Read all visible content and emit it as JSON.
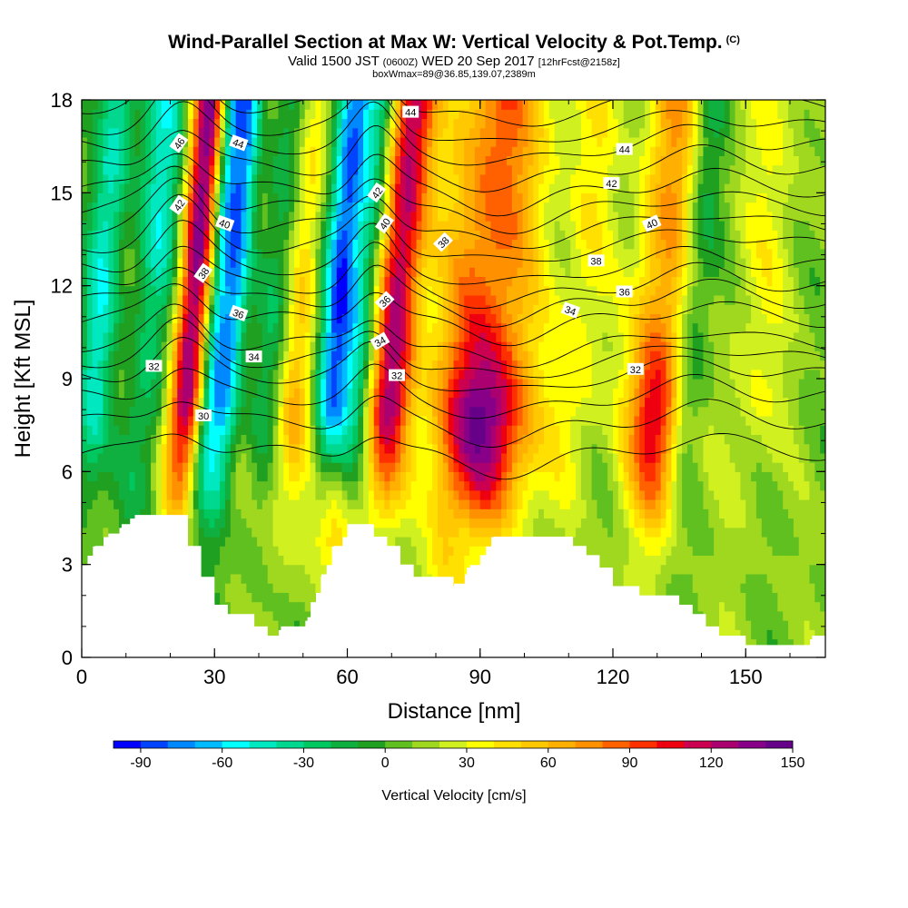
{
  "header": {
    "title": "Wind-Parallel Section at Max W: Vertical Velocity & Pot.Temp.",
    "title_tag": "(C)",
    "subtitle_a": "Valid 1500 JST",
    "subtitle_b": "(0600Z)",
    "subtitle_c": "WED 20 Sep 2017",
    "subtitle_d": "[12hrFcst@2158z]",
    "subtitle_line3": "boxWmax=89@36.85,139.07,2389m"
  },
  "chart_data": {
    "type": "heatmap",
    "title": "Wind-Parallel Section at Max W: Vertical Velocity & Pot.Temp.",
    "xlabel": "Distance [nm]",
    "ylabel": "Height [Kft MSL]",
    "xlim": [
      0,
      168
    ],
    "ylim": [
      0,
      18
    ],
    "x_ticks": [
      "0",
      "30",
      "60",
      "90",
      "120",
      "150"
    ],
    "x_tick_values": [
      0,
      30,
      60,
      90,
      120,
      150
    ],
    "y_ticks": [
      "0",
      "3",
      "6",
      "9",
      "12",
      "15",
      "18"
    ],
    "y_tick_values": [
      0,
      3,
      6,
      9,
      12,
      15,
      18
    ],
    "colorbar": {
      "label": "Vertical Velocity [cm/s]",
      "tick_labels": [
        "-90",
        "-60",
        "-30",
        "0",
        "30",
        "60",
        "90",
        "120",
        "150"
      ],
      "tick_values": [
        -90,
        -60,
        -30,
        0,
        30,
        60,
        90,
        120,
        150
      ],
      "colors": [
        "#0000ff",
        "#0044ff",
        "#0088ff",
        "#00bbff",
        "#00ffff",
        "#00e8c0",
        "#00d890",
        "#00c860",
        "#10b040",
        "#20a020",
        "#60c020",
        "#a0d820",
        "#d0f020",
        "#ffff00",
        "#ffe000",
        "#ffc800",
        "#ffb000",
        "#ff9000",
        "#ff6000",
        "#ff3000",
        "#ee0010",
        "#cc0050",
        "#aa0070",
        "#880088",
        "#660088"
      ]
    },
    "vertical_velocity_cores": [
      {
        "x": 24,
        "w": 3.2,
        "amp": 135
      },
      {
        "x": 29,
        "w": 2.2,
        "amp": -80
      },
      {
        "x": 33,
        "w": 2.2,
        "amp": -70
      },
      {
        "x": 18,
        "w": 3.5,
        "amp": -40
      },
      {
        "x": 57,
        "w": 3.0,
        "amp": -95
      },
      {
        "x": 63,
        "w": 2.2,
        "amp": -40
      },
      {
        "x": 70,
        "w": 3.5,
        "amp": 110
      },
      {
        "x": 3,
        "w": 3.0,
        "amp": -55
      },
      {
        "x": 13,
        "w": 3.0,
        "amp": -35
      },
      {
        "x": 43,
        "w": 3.0,
        "amp": -35
      },
      {
        "x": 48,
        "w": 3.0,
        "amp": 40
      },
      {
        "x": 90,
        "w": 8.0,
        "amp": 75
      },
      {
        "x": 112,
        "w": 4.0,
        "amp": 25
      },
      {
        "x": 130,
        "w": 5.0,
        "amp": 60
      },
      {
        "x": 137,
        "w": 3.0,
        "amp": -35
      },
      {
        "x": 152,
        "w": 5.0,
        "amp": 20
      }
    ],
    "vertical_velocity_lower_cores": [
      {
        "x": 92,
        "h": 7,
        "w": 7,
        "amp": 70
      },
      {
        "x": 56,
        "h": 4.5,
        "w": 4,
        "amp": 45
      },
      {
        "x": 47,
        "h": 7,
        "w": 4,
        "amp": 20
      },
      {
        "x": 130,
        "h": 7,
        "w": 4,
        "amp": 55
      },
      {
        "x": 14,
        "h": 9,
        "w": 5,
        "amp": 20
      },
      {
        "x": 82,
        "h": 3,
        "w": 3,
        "amp": 25
      }
    ],
    "terrain": {
      "x": [
        0,
        3,
        6,
        9,
        12,
        15,
        18,
        21,
        24,
        27,
        30,
        33,
        36,
        39,
        42,
        45,
        48,
        51,
        54,
        57,
        60,
        63,
        66,
        69,
        72,
        75,
        78,
        81,
        84,
        87,
        90,
        93,
        96,
        99,
        102,
        105,
        108,
        111,
        114,
        117,
        120,
        123,
        126,
        129,
        132,
        135,
        138,
        141,
        144,
        147,
        150,
        153,
        156,
        159,
        162,
        165,
        168
      ],
      "height_kft": [
        2.9,
        3.6,
        4.0,
        4.3,
        4.6,
        4.6,
        4.6,
        4.6,
        3.6,
        2.6,
        1.7,
        1.4,
        1.4,
        1.0,
        0.7,
        1.0,
        1.0,
        1.3,
        2.6,
        3.6,
        4.3,
        4.3,
        3.9,
        3.6,
        3.0,
        2.6,
        2.6,
        2.6,
        2.3,
        2.9,
        3.3,
        3.9,
        3.9,
        3.9,
        3.9,
        3.9,
        3.9,
        3.6,
        3.3,
        2.9,
        2.3,
        2.3,
        2.0,
        2.0,
        2.0,
        1.7,
        1.4,
        1.0,
        0.7,
        0.7,
        0.4,
        0.4,
        0.4,
        0.4,
        0.4,
        0.7,
        0.7
      ]
    },
    "potential_temperature_contours": {
      "unit": "C",
      "levels": [
        29,
        30,
        31,
        32,
        33,
        34,
        35,
        36,
        37,
        38,
        39,
        40,
        41,
        42,
        43,
        44,
        45,
        46
      ],
      "base_height_kft": [
        6.6,
        7.6,
        8.4,
        9.1,
        9.6,
        10.1,
        10.9,
        11.5,
        12.0,
        12.6,
        13.3,
        13.9,
        14.5,
        15.1,
        15.8,
        16.5,
        17.1,
        17.8
      ]
    },
    "contour_labels": [
      {
        "x": 22.0,
        "y": 16.6,
        "text": "46",
        "rot": -55
      },
      {
        "x": 35.4,
        "y": 16.6,
        "text": "44",
        "rot": 20
      },
      {
        "x": 74.3,
        "y": 17.6,
        "text": "44",
        "rot": 0
      },
      {
        "x": 122.6,
        "y": 16.4,
        "text": "44",
        "rot": 0
      },
      {
        "x": 22.0,
        "y": 14.6,
        "text": "42",
        "rot": -55
      },
      {
        "x": 66.7,
        "y": 15.0,
        "text": "42",
        "rot": -55
      },
      {
        "x": 119.7,
        "y": 15.3,
        "text": "42",
        "rot": 0
      },
      {
        "x": 32.3,
        "y": 14.0,
        "text": "40",
        "rot": 20
      },
      {
        "x": 68.5,
        "y": 14.0,
        "text": "40",
        "rot": -55
      },
      {
        "x": 128.8,
        "y": 14.0,
        "text": "40",
        "rot": -25
      },
      {
        "x": 81.7,
        "y": 13.4,
        "text": "38",
        "rot": -45
      },
      {
        "x": 27.5,
        "y": 12.4,
        "text": "38",
        "rot": -55
      },
      {
        "x": 116.2,
        "y": 12.8,
        "text": "38",
        "rot": 0
      },
      {
        "x": 68.5,
        "y": 11.5,
        "text": "36",
        "rot": -45
      },
      {
        "x": 35.4,
        "y": 11.1,
        "text": "36",
        "rot": 20
      },
      {
        "x": 122.6,
        "y": 11.8,
        "text": "36",
        "rot": 0
      },
      {
        "x": 110.4,
        "y": 11.2,
        "text": "34",
        "rot": 20
      },
      {
        "x": 67.4,
        "y": 10.2,
        "text": "34",
        "rot": -30
      },
      {
        "x": 38.9,
        "y": 9.7,
        "text": "34",
        "rot": 0
      },
      {
        "x": 16.3,
        "y": 9.4,
        "text": "32",
        "rot": 0
      },
      {
        "x": 71.2,
        "y": 9.1,
        "text": "32",
        "rot": 0
      },
      {
        "x": 125.1,
        "y": 9.3,
        "text": "32",
        "rot": 0
      },
      {
        "x": 27.5,
        "y": 7.8,
        "text": "30",
        "rot": 0
      }
    ]
  }
}
